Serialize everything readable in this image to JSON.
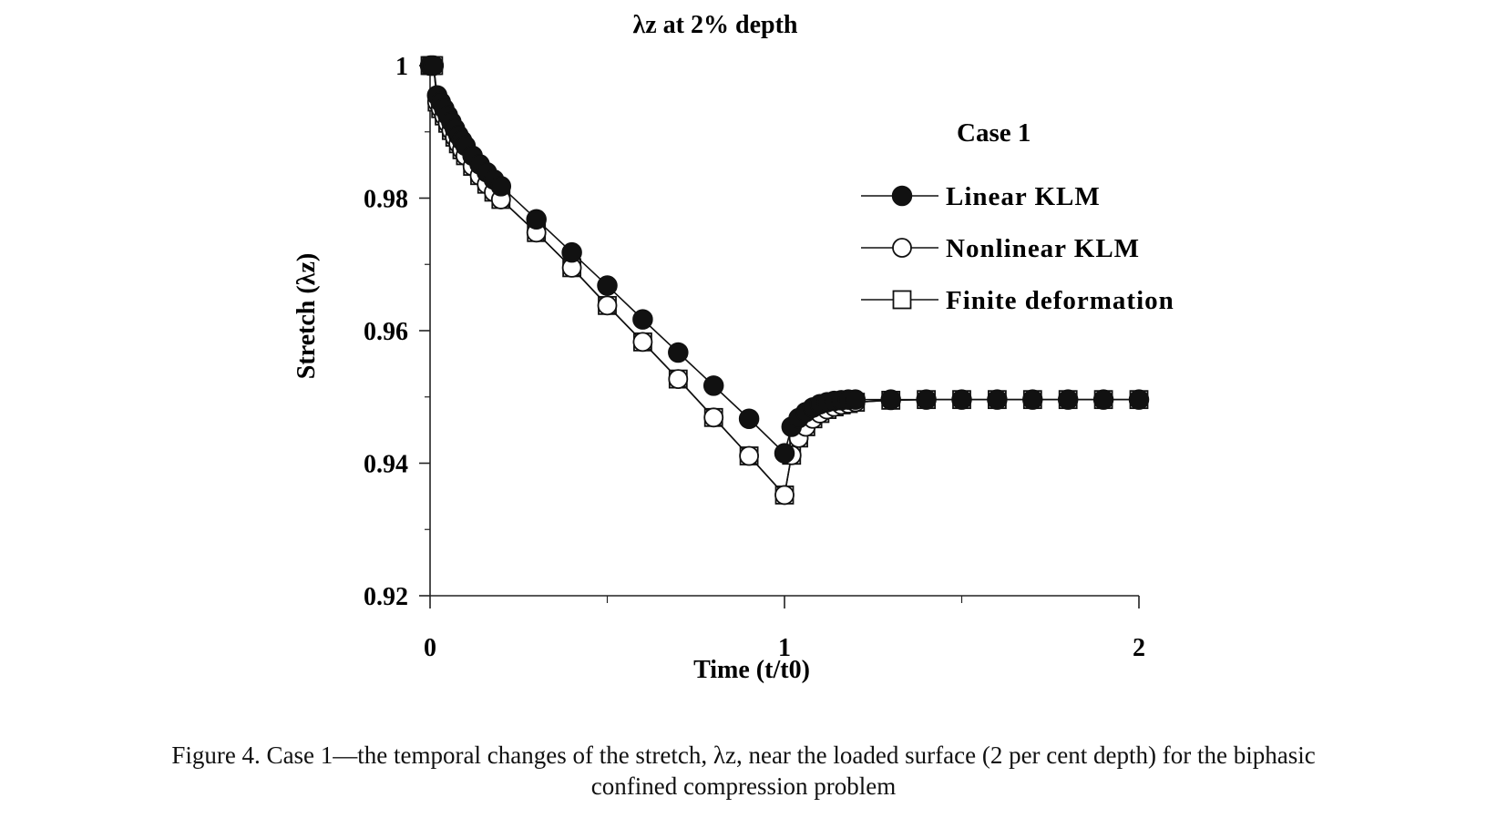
{
  "chart_data": {
    "type": "line",
    "title": "λz at 2% depth",
    "xlabel": "Time (t/t0)",
    "ylabel": "Stretch (λz)",
    "xlim": [
      0,
      2
    ],
    "ylim": [
      0.92,
      1.0
    ],
    "xticks": [
      "0",
      "1",
      "2"
    ],
    "yticks": [
      "0.92",
      "0.94",
      "0.96",
      "0.98",
      "1"
    ],
    "grid": false,
    "legend_title": "Case 1",
    "legend_position": "top-right",
    "series": [
      {
        "name": "Linear KLM",
        "marker": "filled-circle",
        "x": [
          0,
          0.005,
          0.01,
          0.02,
          0.03,
          0.04,
          0.05,
          0.06,
          0.07,
          0.08,
          0.09,
          0.1,
          0.12,
          0.14,
          0.16,
          0.18,
          0.2,
          0.3,
          0.4,
          0.5,
          0.6,
          0.7,
          0.8,
          0.9,
          1.0,
          1.02,
          1.04,
          1.06,
          1.08,
          1.1,
          1.12,
          1.14,
          1.16,
          1.18,
          1.2,
          1.3,
          1.4,
          1.5,
          1.6,
          1.7,
          1.8,
          1.9,
          2.0
        ],
        "y": [
          1.0,
          1.0,
          1.0,
          0.9955,
          0.9945,
          0.9935,
          0.9925,
          0.9915,
          0.9905,
          0.9895,
          0.9887,
          0.9879,
          0.9864,
          0.9851,
          0.9839,
          0.9828,
          0.9818,
          0.9768,
          0.9718,
          0.9668,
          0.9617,
          0.9567,
          0.9517,
          0.9467,
          0.9415,
          0.9455,
          0.9468,
          0.9477,
          0.9484,
          0.9489,
          0.9492,
          0.9494,
          0.9495,
          0.9496,
          0.9496,
          0.9496,
          0.9496,
          0.9496,
          0.9496,
          0.9496,
          0.9496,
          0.9496,
          0.9496
        ]
      },
      {
        "name": "Nonlinear KLM",
        "marker": "open-circle",
        "x": [
          0,
          0.005,
          0.01,
          0.02,
          0.03,
          0.04,
          0.05,
          0.06,
          0.07,
          0.08,
          0.09,
          0.1,
          0.12,
          0.14,
          0.16,
          0.18,
          0.2,
          0.3,
          0.4,
          0.5,
          0.6,
          0.7,
          0.8,
          0.9,
          1.0,
          1.02,
          1.04,
          1.06,
          1.08,
          1.1,
          1.12,
          1.14,
          1.16,
          1.18,
          1.2,
          1.3,
          1.4,
          1.5,
          1.6,
          1.7,
          1.8,
          1.9,
          2.0
        ],
        "y": [
          1.0,
          1.0,
          1.0,
          0.9945,
          0.9935,
          0.9924,
          0.9913,
          0.9902,
          0.9892,
          0.9882,
          0.9873,
          0.9864,
          0.9848,
          0.9834,
          0.9821,
          0.9809,
          0.9798,
          0.9748,
          0.9695,
          0.9638,
          0.9583,
          0.9527,
          0.9469,
          0.9411,
          0.9352,
          0.9412,
          0.9438,
          0.9455,
          0.9467,
          0.9475,
          0.9481,
          0.9485,
          0.9488,
          0.949,
          0.9492,
          0.9495,
          0.9496,
          0.9496,
          0.9496,
          0.9496,
          0.9496,
          0.9496,
          0.9496
        ]
      },
      {
        "name": "Finite deformation",
        "marker": "open-square",
        "x": [
          0,
          0.005,
          0.01,
          0.02,
          0.03,
          0.04,
          0.05,
          0.06,
          0.07,
          0.08,
          0.09,
          0.1,
          0.12,
          0.14,
          0.16,
          0.18,
          0.2,
          0.3,
          0.4,
          0.5,
          0.6,
          0.7,
          0.8,
          0.9,
          1.0,
          1.02,
          1.04,
          1.06,
          1.08,
          1.1,
          1.12,
          1.14,
          1.16,
          1.18,
          1.2,
          1.3,
          1.4,
          1.5,
          1.6,
          1.7,
          1.8,
          1.9,
          2.0
        ],
        "y": [
          1.0,
          1.0,
          1.0,
          0.9945,
          0.9935,
          0.9924,
          0.9913,
          0.9902,
          0.9892,
          0.9882,
          0.9873,
          0.9864,
          0.9848,
          0.9834,
          0.9821,
          0.9809,
          0.9798,
          0.9748,
          0.9695,
          0.9638,
          0.9583,
          0.9527,
          0.9469,
          0.9411,
          0.9352,
          0.9412,
          0.9438,
          0.9455,
          0.9467,
          0.9475,
          0.9481,
          0.9485,
          0.9488,
          0.949,
          0.9492,
          0.9495,
          0.9496,
          0.9496,
          0.9496,
          0.9496,
          0.9496,
          0.9496,
          0.9496
        ]
      }
    ]
  },
  "caption": {
    "line1": "Figure 4. Case 1—the temporal changes of the stretch, λz, near the loaded surface (2 per cent depth) for the biphasic",
    "line2": "confined compression problem"
  }
}
